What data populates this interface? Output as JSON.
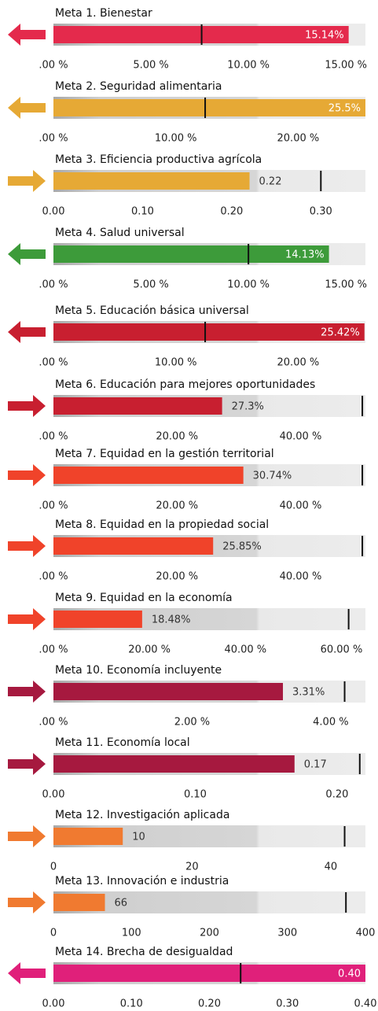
{
  "chart_data": [
    {
      "type": "bullet",
      "title": "Meta 1. Bienestar",
      "value": 15.14,
      "value_label": "15.14%",
      "target": 7.6,
      "xlim": [
        0,
        16
      ],
      "xticks": [
        {
          "value": 0,
          "label": ".00 %"
        },
        {
          "value": 5,
          "label": "5.00 %"
        },
        {
          "value": 10,
          "label": "10.00 %"
        },
        {
          "value": 15,
          "label": "15.00 %"
        }
      ],
      "color": "#e42a4c",
      "arrow": "left"
    },
    {
      "type": "bullet",
      "title": "Meta 2. Seguridad alimentaria",
      "value": 25.5,
      "value_label": "25.5%",
      "target": 12.4,
      "xlim": [
        0,
        25.5
      ],
      "xticks": [
        {
          "value": 0,
          "label": ".00 %"
        },
        {
          "value": 10,
          "label": "10.00 %"
        },
        {
          "value": 20,
          "label": "20.00 %"
        }
      ],
      "color": "#e6a935",
      "arrow": "left"
    },
    {
      "type": "bullet",
      "title": "Meta 3. Eficiencia productiva agrícola",
      "value": 0.22,
      "target": 0.3,
      "xlim": [
        0,
        0.35
      ],
      "xticks": [
        {
          "value": 0,
          "label": "0.00"
        },
        {
          "value": 0.1,
          "label": "0.10"
        },
        {
          "value": 0.2,
          "label": "0.20"
        },
        {
          "value": 0.3,
          "label": "0.30"
        }
      ],
      "color": "#e6a935",
      "arrow": "right"
    },
    {
      "type": "bullet",
      "title": "Meta 4. Salud universal",
      "value": 14.13,
      "value_label": "14.13%",
      "target": 10,
      "xlim": [
        0,
        16
      ],
      "xticks": [
        {
          "value": 0,
          "label": ".00 %"
        },
        {
          "value": 5,
          "label": "5.00 %"
        },
        {
          "value": 10,
          "label": "10.00 %"
        },
        {
          "value": 15,
          "label": "15.00 %"
        }
      ],
      "color": "#3d9b3a",
      "arrow": "left"
    },
    {
      "type": "bullet",
      "title": "Meta 5. Educación básica universal",
      "value": 25.42,
      "value_label": "25.42%",
      "target": 12.4,
      "xlim": [
        0,
        25.5
      ],
      "xticks": [
        {
          "value": 0,
          "label": ".00 %"
        },
        {
          "value": 10,
          "label": "10.00 %"
        },
        {
          "value": 20,
          "label": "20.00 %"
        }
      ],
      "color": "#c81f30",
      "arrow": "left"
    },
    {
      "type": "bullet",
      "title": "Meta 6. Educación para mejores oportunidades",
      "value": 27.3,
      "value_label": "27.3%",
      "target": 50,
      "xlim": [
        0,
        50.5
      ],
      "xticks": [
        {
          "value": 0,
          "label": ".00 %"
        },
        {
          "value": 20,
          "label": "20.00 %"
        },
        {
          "value": 40,
          "label": "40.00 %"
        }
      ],
      "color": "#c81f30",
      "arrow": "right"
    },
    {
      "type": "bullet",
      "title": "Meta 7. Equidad en la gestión territorial",
      "value": 30.74,
      "value_label": "30.74%",
      "target": 50,
      "xlim": [
        0,
        50.5
      ],
      "xticks": [
        {
          "value": 0,
          "label": ".00 %"
        },
        {
          "value": 20,
          "label": "20.00 %"
        },
        {
          "value": 40,
          "label": "40.00 %"
        }
      ],
      "color": "#f0432a",
      "arrow": "right"
    },
    {
      "type": "bullet",
      "title": "Meta 8. Equidad en la propiedad social",
      "value": 25.85,
      "value_label": "25.85%",
      "target": 50,
      "xlim": [
        0,
        50.5
      ],
      "xticks": [
        {
          "value": 0,
          "label": ".00 %"
        },
        {
          "value": 20,
          "label": "20.00 %"
        },
        {
          "value": 40,
          "label": "40.00 %"
        }
      ],
      "color": "#f0432a",
      "arrow": "right"
    },
    {
      "type": "bullet",
      "title": "Meta 9. Equidad en la economía",
      "value": 18.48,
      "value_label": "18.48%",
      "target": 61.5,
      "xlim": [
        0,
        65
      ],
      "xticks": [
        {
          "value": 0,
          "label": ".00 %"
        },
        {
          "value": 20,
          "label": "20.00 %"
        },
        {
          "value": 40,
          "label": "40.00 %"
        },
        {
          "value": 60,
          "label": "60.00 %"
        }
      ],
      "color": "#f0432a",
      "arrow": "right"
    },
    {
      "type": "bullet",
      "title": "Meta 10. Economía incluyente",
      "value": 3.31,
      "value_label": "3.31%",
      "target": 4.2,
      "xlim": [
        0,
        4.5
      ],
      "xticks": [
        {
          "value": 0,
          "label": ".00 %"
        },
        {
          "value": 2,
          "label": "2.00 %"
        },
        {
          "value": 4,
          "label": "4.00 %"
        }
      ],
      "color": "#a6193f",
      "arrow": "right"
    },
    {
      "type": "bullet",
      "title": "Meta 11. Economía local",
      "value": 0.17,
      "target": 0.216,
      "xlim": [
        0,
        0.22
      ],
      "xticks": [
        {
          "value": 0,
          "label": "0.00"
        },
        {
          "value": 0.1,
          "label": "0.10"
        },
        {
          "value": 0.2,
          "label": "0.20"
        }
      ],
      "color": "#a6193f",
      "arrow": "right"
    },
    {
      "type": "bullet",
      "title": "Meta 12. Investigación aplicada",
      "value": 10,
      "target": 42,
      "xlim": [
        0,
        45
      ],
      "xticks": [
        0,
        20,
        40
      ],
      "color": "#f07a30",
      "arrow": "right"
    },
    {
      "type": "bullet",
      "title": "Meta 13.  Innovación e industria",
      "value": 66,
      "target": 375,
      "xlim": [
        0,
        400
      ],
      "xticks": [
        0,
        100,
        200,
        300,
        400
      ],
      "color": "#f07a30",
      "arrow": "right"
    },
    {
      "type": "bullet",
      "title": "Meta 14. Brecha de desigualdad",
      "value": 0.4,
      "value_label": "0.40",
      "target": 0.24,
      "xlim": [
        0,
        0.4
      ],
      "xticks": [
        {
          "value": 0,
          "label": "0.00"
        },
        {
          "value": 0.1,
          "label": "0.10"
        },
        {
          "value": 0.2,
          "label": "0.20"
        },
        {
          "value": 0.3,
          "label": "0.30"
        },
        {
          "value": 0.4,
          "label": "0.40"
        }
      ],
      "color": "#e0207a",
      "arrow": "left"
    }
  ]
}
